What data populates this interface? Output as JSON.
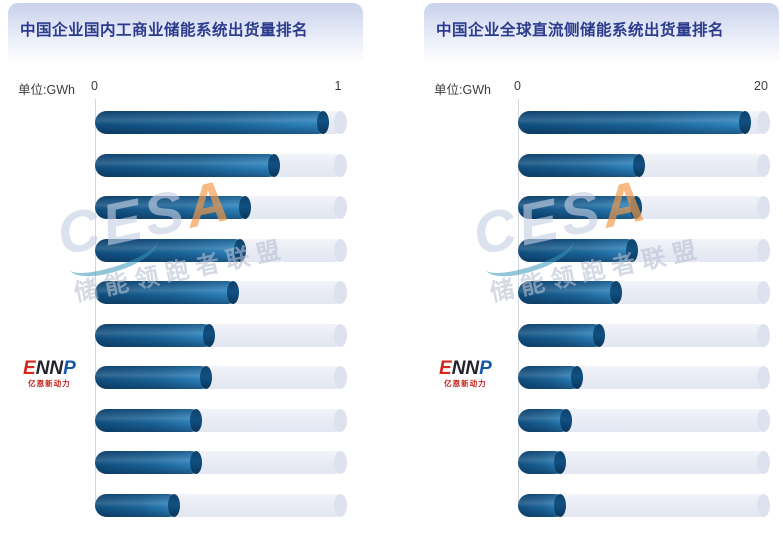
{
  "chart_data": [
    {
      "type": "bar",
      "orientation": "horizontal",
      "title": "中国企业国内工商业储能系统出货量排名",
      "unit_label": "单位:GWh",
      "xlim": [
        0,
        1
      ],
      "tick_labels": [
        "0",
        "1"
      ],
      "grid": false,
      "legend": false,
      "bars_labeled": false,
      "values": [
        0.96,
        0.76,
        0.64,
        0.62,
        0.59,
        0.49,
        0.48,
        0.44,
        0.44,
        0.35
      ]
    },
    {
      "type": "bar",
      "orientation": "horizontal",
      "title": "中国企业全球直流侧储能系统出货量排名",
      "unit_label": "单位:GWh",
      "xlim": [
        0,
        20
      ],
      "tick_labels": [
        "0",
        "20"
      ],
      "grid": false,
      "legend": false,
      "bars_labeled": false,
      "values": [
        19.1,
        10.4,
        10.2,
        9.8,
        8.5,
        7.1,
        5.3,
        4.4,
        3.9,
        3.9
      ]
    }
  ],
  "watermark": {
    "brand_main": "CES",
    "brand_accent_letter": "A",
    "alliance_text": "储能领跑者联盟",
    "accent_color": "#f09a48"
  },
  "logo": {
    "e": "E",
    "nn": "NN",
    "p": "P",
    "subtext": "亿恩新动力"
  },
  "colors": {
    "title_text": "#2c3b8e",
    "bar_gradient_start": "#0f4d7c",
    "bar_gradient_end": "#2e86c0",
    "bar_cap": "#0d426b",
    "track": "#e8ebf4",
    "header_gradient_top": "#c9d2ec"
  }
}
